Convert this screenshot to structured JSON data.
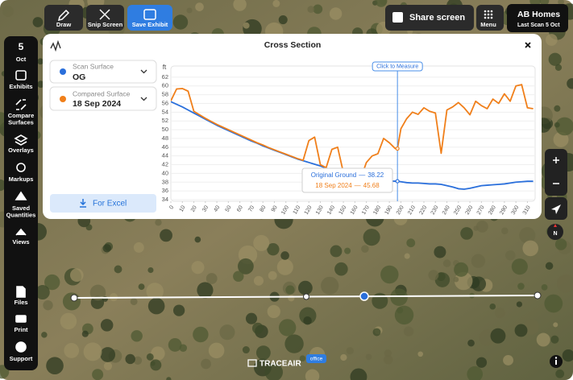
{
  "toolbar": {
    "draw": "Draw",
    "snip": "Snip Screen",
    "save": "Save Exhibit",
    "share": "Share screen",
    "menu": "Menu",
    "project": "AB Homes",
    "last_scan": "Last Scan 5 Oct"
  },
  "sidebar": {
    "day": "5",
    "month": "Oct",
    "items": [
      [
        "Exhibits"
      ],
      [
        "Compare",
        "Surfaces"
      ],
      [
        "Overlays"
      ],
      [
        "Markups"
      ],
      [
        "Saved",
        "Quantities"
      ],
      [
        "Views"
      ]
    ],
    "bottom_items": [
      [
        "Files"
      ],
      [
        "Print"
      ],
      [
        "Support"
      ]
    ]
  },
  "panel": {
    "title": "Cross Section",
    "scan_label": "Scan Surface",
    "scan_value": "OG",
    "compared_label": "Compared Surface",
    "compared_value": "18 Sep 2024",
    "export": "For Excel"
  },
  "chart_data": {
    "type": "line",
    "y_unit": "ft",
    "x": [
      0,
      5,
      10,
      15,
      20,
      25,
      30,
      35,
      40,
      45,
      50,
      55,
      60,
      65,
      70,
      75,
      80,
      85,
      90,
      95,
      100,
      105,
      110,
      115,
      120,
      125,
      130,
      135,
      140,
      145,
      150,
      155,
      160,
      165,
      170,
      175,
      180,
      185,
      190,
      195,
      197,
      200,
      205,
      210,
      215,
      220,
      225,
      230,
      235,
      240,
      245,
      250,
      255,
      260,
      265,
      270,
      275,
      280,
      285,
      290,
      295,
      300,
      305,
      310,
      315
    ],
    "series": [
      {
        "name": "Original Ground",
        "color": "#2a6fdb",
        "values": [
          56.4,
          55.8,
          55.2,
          54.5,
          53.8,
          53.1,
          52.4,
          51.7,
          51.0,
          50.4,
          49.8,
          49.2,
          48.6,
          48.0,
          47.4,
          46.9,
          46.3,
          45.8,
          45.3,
          44.8,
          44.3,
          43.8,
          43.3,
          42.9,
          42.5,
          42.1,
          41.7,
          41.2,
          40.8,
          40.4,
          40.0,
          39.6,
          39.3,
          39.0,
          38.8,
          38.6,
          38.4,
          38.3,
          38.25,
          38.22,
          38.22,
          38.1,
          37.9,
          37.8,
          37.8,
          37.7,
          37.6,
          37.6,
          37.5,
          37.2,
          36.9,
          36.5,
          36.4,
          36.6,
          36.9,
          37.2,
          37.3,
          37.4,
          37.5,
          37.6,
          37.8,
          38.0,
          38.1,
          38.2,
          38.2
        ]
      },
      {
        "name": "18 Sep 2024",
        "color": "#f07f1a",
        "values": [
          56.6,
          59.3,
          59.4,
          58.8,
          54.2,
          53.4,
          52.6,
          51.9,
          51.2,
          50.6,
          50.0,
          49.4,
          48.8,
          48.2,
          47.6,
          47.0,
          46.5,
          45.9,
          45.4,
          44.9,
          44.4,
          43.9,
          43.4,
          43.0,
          47.5,
          48.3,
          42.0,
          41.3,
          45.5,
          46.0,
          40.2,
          39.2,
          39.0,
          38.8,
          42.5,
          44.0,
          44.5,
          48.0,
          47.0,
          45.7,
          45.68,
          50.2,
          52.5,
          54.0,
          53.5,
          55.0,
          54.2,
          53.8,
          44.6,
          54.5,
          55.2,
          56.2,
          55.0,
          53.4,
          56.5,
          55.5,
          54.8,
          57.0,
          56.0,
          58.2,
          56.5,
          60.0,
          60.3,
          55.0,
          54.8
        ]
      }
    ],
    "xlim": [
      0,
      316
    ],
    "ylim": [
      34,
      64
    ],
    "xticks": [
      0,
      10,
      20,
      30,
      40,
      50,
      60,
      70,
      80,
      90,
      100,
      110,
      120,
      130,
      140,
      150,
      160,
      170,
      180,
      190,
      200,
      210,
      220,
      230,
      240,
      250,
      260,
      270,
      280,
      290,
      300,
      310
    ],
    "yticks": [
      34,
      36,
      38,
      40,
      42,
      44,
      46,
      48,
      50,
      52,
      54,
      56,
      58,
      60,
      62
    ],
    "grid": true,
    "measure_label": "Click to Measure",
    "measure_index": 40,
    "tooltip_separator": "—"
  },
  "map": {
    "compass": "N"
  },
  "footer": {
    "brand": "TRACEAIR",
    "badge": "office"
  }
}
